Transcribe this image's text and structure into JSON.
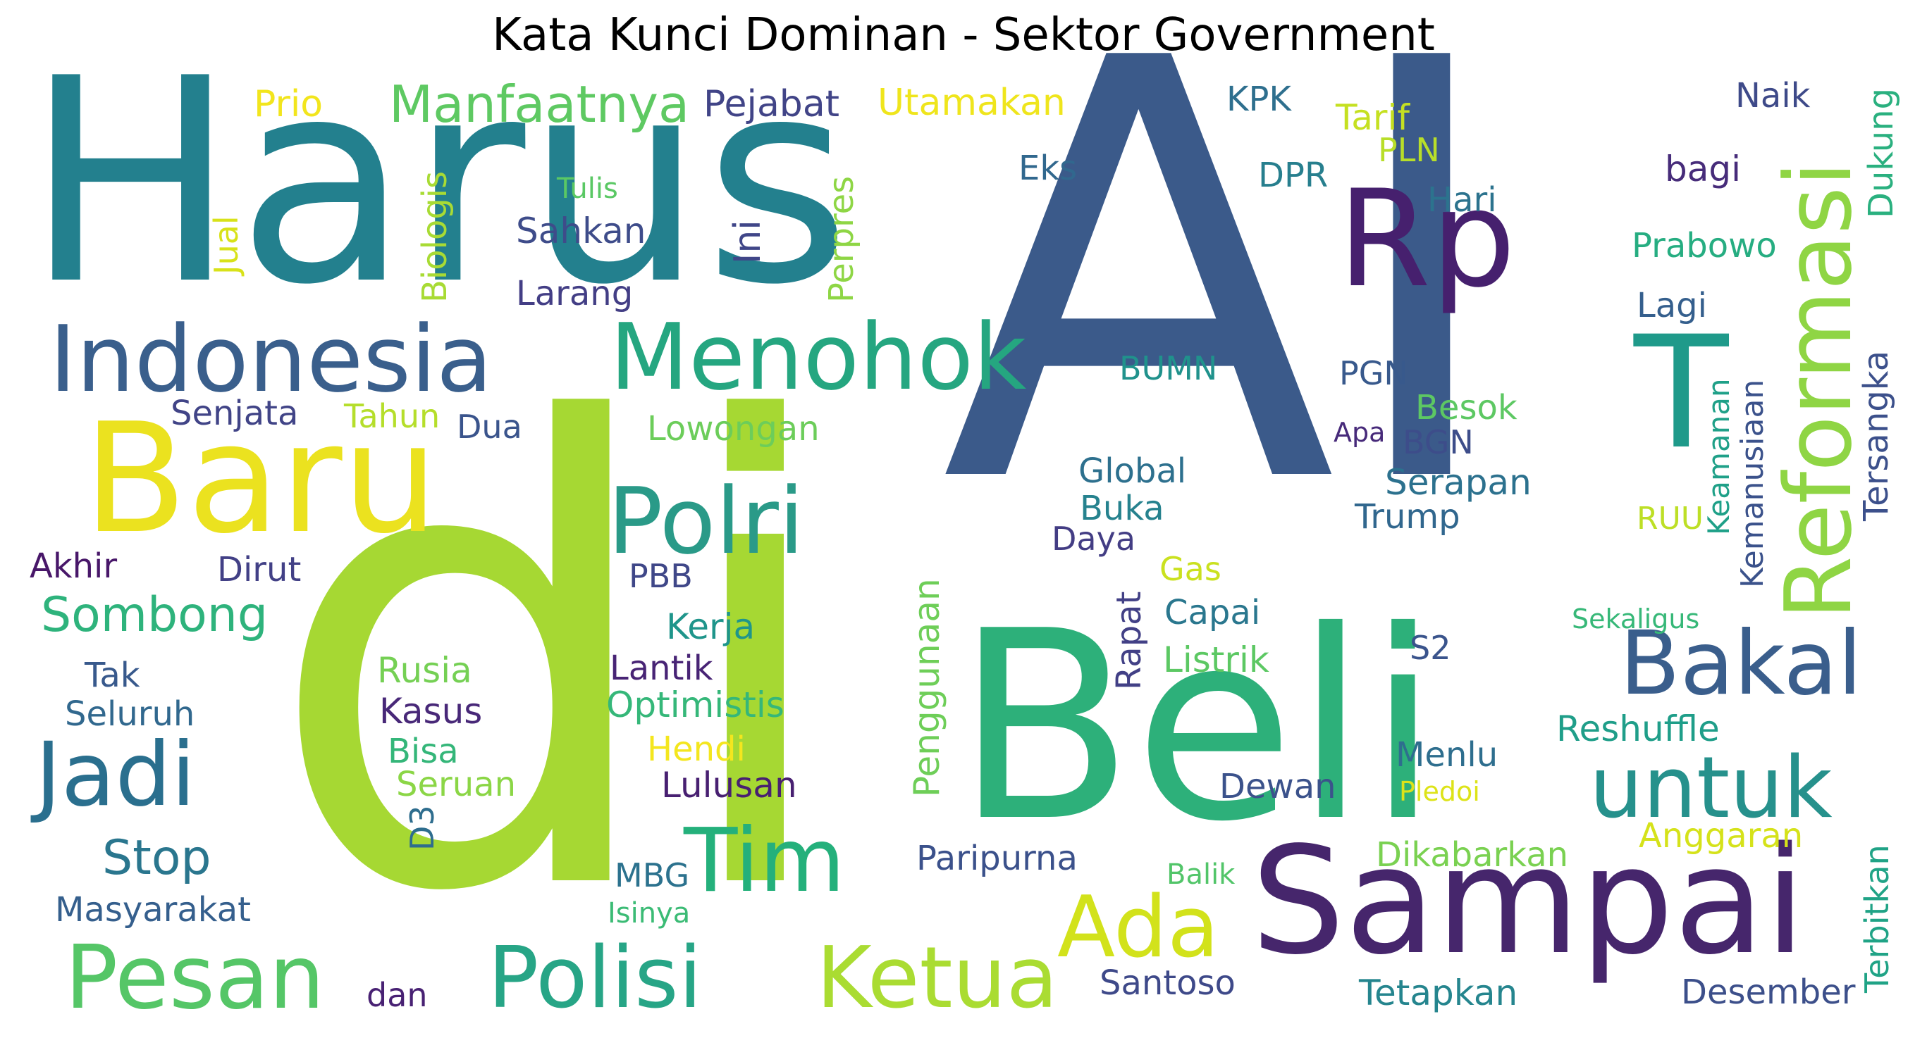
{
  "title": "Kata Kunci Dominan - Sektor Government",
  "words": [
    {
      "text": "AI",
      "color": "#3b5a8a"
    },
    {
      "text": "di",
      "color": "#a6d833"
    },
    {
      "text": "Harus",
      "color": "#23808e"
    },
    {
      "text": "Beli",
      "color": "#2db07a"
    },
    {
      "text": "Rp",
      "color": "#46206e"
    },
    {
      "text": "Baru",
      "color": "#ebe21f"
    },
    {
      "text": "Indonesia",
      "color": "#3a5f8c"
    },
    {
      "text": "Menohok",
      "color": "#25a680"
    },
    {
      "text": "Sampai",
      "color": "#46266c"
    },
    {
      "text": "Polri",
      "color": "#2a9a88"
    },
    {
      "text": "Jadi",
      "color": "#2a6f8e"
    },
    {
      "text": "Pesan",
      "color": "#55c667"
    },
    {
      "text": "Polisi",
      "color": "#27a586"
    },
    {
      "text": "Ketua",
      "color": "#aadc32"
    },
    {
      "text": "Tim",
      "color": "#24b07b"
    },
    {
      "text": "Ada",
      "color": "#d2e21b"
    },
    {
      "text": "untuk",
      "color": "#26918c"
    },
    {
      "text": "Bakal",
      "color": "#3a5e8c"
    },
    {
      "text": "Reformasi",
      "color": "#8fd544"
    },
    {
      "text": "T",
      "color": "#1f9a8a"
    },
    {
      "text": "Manfaatnya",
      "color": "#5ec962"
    },
    {
      "text": "Sombong",
      "color": "#2eb37c"
    },
    {
      "text": "Stop",
      "color": "#2a768e"
    },
    {
      "text": "Prio",
      "color": "#f2e51d"
    },
    {
      "text": "Pejabat",
      "color": "#414487"
    },
    {
      "text": "Utamakan",
      "color": "#efe51c"
    },
    {
      "text": "KPK",
      "color": "#2e6f8e"
    },
    {
      "text": "Tarif",
      "color": "#c5e021"
    },
    {
      "text": "Naik",
      "color": "#3e4a89"
    },
    {
      "text": "Dukung",
      "color": "#2ab07f"
    },
    {
      "text": "PLN",
      "color": "#b8de29"
    },
    {
      "text": "bagi",
      "color": "#472c7a"
    },
    {
      "text": "Eks",
      "color": "#31688e"
    },
    {
      "text": "DPR",
      "color": "#277f8e"
    },
    {
      "text": "Hari",
      "color": "#2c738e"
    },
    {
      "text": "Tulis",
      "color": "#5ac864"
    },
    {
      "text": "Jual",
      "color": "#d8e219"
    },
    {
      "text": "Biologis",
      "color": "#a8db34"
    },
    {
      "text": "Sahkan",
      "color": "#3e4c8a"
    },
    {
      "text": "Ini",
      "color": "#404688"
    },
    {
      "text": "Perpres",
      "color": "#8ed645"
    },
    {
      "text": "Prabowo",
      "color": "#26ad81"
    },
    {
      "text": "Larang",
      "color": "#433e85"
    },
    {
      "text": "Lagi",
      "color": "#355f8d"
    },
    {
      "text": "Kemanusiaan",
      "color": "#3b528b"
    },
    {
      "text": "Keamanan",
      "color": "#1fa088"
    },
    {
      "text": "Tersangka",
      "color": "#3c508b"
    },
    {
      "text": "BUMN",
      "color": "#20928c"
    },
    {
      "text": "PGN",
      "color": "#38598c"
    },
    {
      "text": "Besok",
      "color": "#5dc863"
    },
    {
      "text": "Senjata",
      "color": "#414487"
    },
    {
      "text": "Tahun",
      "color": "#b5de2b"
    },
    {
      "text": "Dua",
      "color": "#3a548c"
    },
    {
      "text": "Lowongan",
      "color": "#6ccd5a"
    },
    {
      "text": "Apa",
      "color": "#472a7a"
    },
    {
      "text": "BGN",
      "color": "#3d4d8a"
    },
    {
      "text": "Global",
      "color": "#2d708e"
    },
    {
      "text": "Serapan",
      "color": "#2c718e"
    },
    {
      "text": "Buka",
      "color": "#26828e"
    },
    {
      "text": "Trump",
      "color": "#31678e"
    },
    {
      "text": "RUU",
      "color": "#bddf26"
    },
    {
      "text": "Akhir",
      "color": "#481769"
    },
    {
      "text": "Dirut",
      "color": "#424086"
    },
    {
      "text": "Daya",
      "color": "#433d84"
    },
    {
      "text": "PBB",
      "color": "#3f4788"
    },
    {
      "text": "Gas",
      "color": "#cae11f"
    },
    {
      "text": "Penggunaan",
      "color": "#6ece58"
    },
    {
      "text": "Rapat",
      "color": "#424086"
    },
    {
      "text": "Capai",
      "color": "#2a778e"
    },
    {
      "text": "Kerja",
      "color": "#1f958b"
    },
    {
      "text": "Sekaligus",
      "color": "#37b878"
    },
    {
      "text": "Listrik",
      "color": "#5cc863"
    },
    {
      "text": "S2",
      "color": "#3a548c"
    },
    {
      "text": "Tak",
      "color": "#38598c"
    },
    {
      "text": "Rusia",
      "color": "#75d054"
    },
    {
      "text": "Lantik",
      "color": "#482475"
    },
    {
      "text": "Seluruh",
      "color": "#31688e"
    },
    {
      "text": "Optimistis",
      "color": "#35b779"
    },
    {
      "text": "Kasus",
      "color": "#482878"
    },
    {
      "text": "Reshuffle",
      "color": "#1f9e89"
    },
    {
      "text": "Hendi",
      "color": "#f4e61e"
    },
    {
      "text": "Bisa",
      "color": "#34b679"
    },
    {
      "text": "Menlu",
      "color": "#2e6e8e"
    },
    {
      "text": "Seruan",
      "color": "#8bd646"
    },
    {
      "text": "Lulusan",
      "color": "#482071"
    },
    {
      "text": "Dewan",
      "color": "#3b528b"
    },
    {
      "text": "Pledoi",
      "color": "#dde318"
    },
    {
      "text": "D3",
      "color": "#2e6d8e"
    },
    {
      "text": "Terbitkan",
      "color": "#20a386"
    },
    {
      "text": "Anggaran",
      "color": "#d5e21a"
    },
    {
      "text": "Paripurna",
      "color": "#3b518b"
    },
    {
      "text": "Dikabarkan",
      "color": "#7ad151"
    },
    {
      "text": "Masyarakat",
      "color": "#355f8d"
    },
    {
      "text": "MBG",
      "color": "#2c728e"
    },
    {
      "text": "Balik",
      "color": "#52c569"
    },
    {
      "text": "Isinya",
      "color": "#3bbb75"
    },
    {
      "text": "dan",
      "color": "#482173"
    },
    {
      "text": "Santoso",
      "color": "#3e4989"
    },
    {
      "text": "Tetapkan",
      "color": "#25858e"
    },
    {
      "text": "Desember",
      "color": "#3c4f8a"
    }
  ]
}
